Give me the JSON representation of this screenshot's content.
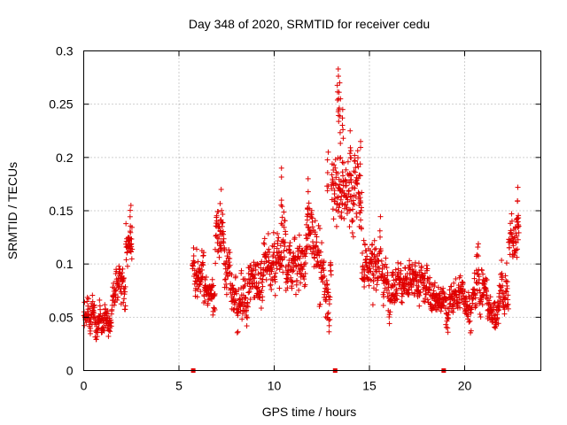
{
  "chart_data": {
    "type": "scatter",
    "title": "Day 348 of 2020, SRMTID for receiver cedu",
    "xlabel": "GPS time / hours",
    "ylabel": "SRMTID / TECUs",
    "xlim": [
      0,
      24
    ],
    "ylim": [
      0,
      0.3
    ],
    "x_ticks": [
      0,
      5,
      10,
      15,
      20
    ],
    "x_tick_labels": [
      "0",
      "5",
      "10",
      "15",
      "20"
    ],
    "y_ticks": [
      0,
      0.05,
      0.1,
      0.15,
      0.2,
      0.25,
      0.3
    ],
    "y_tick_labels": [
      "0",
      "0.05",
      "0.1",
      "0.15",
      "0.2",
      "0.25",
      "0.3"
    ],
    "grid": true,
    "marker": "plus",
    "color": "#e00000",
    "zero_markers_x": [
      5.75,
      13.2,
      18.9
    ],
    "series_profile": [
      {
        "t0": 0.0,
        "t1": 0.5,
        "center": 0.052,
        "spread": 0.02
      },
      {
        "t0": 0.5,
        "t1": 1.5,
        "center": 0.05,
        "spread": 0.018
      },
      {
        "t0": 1.5,
        "t1": 2.2,
        "center": 0.075,
        "spread": 0.025
      },
      {
        "t0": 2.2,
        "t1": 2.55,
        "center": 0.12,
        "spread": 0.025
      },
      {
        "t0": 5.7,
        "t1": 6.3,
        "center": 0.095,
        "spread": 0.025
      },
      {
        "t0": 6.3,
        "t1": 6.9,
        "center": 0.075,
        "spread": 0.02
      },
      {
        "t0": 6.9,
        "t1": 7.4,
        "center": 0.125,
        "spread": 0.03
      },
      {
        "t0": 7.4,
        "t1": 8.0,
        "center": 0.085,
        "spread": 0.025
      },
      {
        "t0": 8.0,
        "t1": 8.6,
        "center": 0.065,
        "spread": 0.025
      },
      {
        "t0": 8.6,
        "t1": 9.4,
        "center": 0.085,
        "spread": 0.03
      },
      {
        "t0": 9.4,
        "t1": 10.0,
        "center": 0.1,
        "spread": 0.03
      },
      {
        "t0": 10.0,
        "t1": 10.6,
        "center": 0.11,
        "spread": 0.04
      },
      {
        "t0": 10.6,
        "t1": 11.6,
        "center": 0.095,
        "spread": 0.03
      },
      {
        "t0": 11.6,
        "t1": 12.4,
        "center": 0.12,
        "spread": 0.04
      },
      {
        "t0": 12.4,
        "t1": 13.0,
        "center": 0.085,
        "spread": 0.035
      },
      {
        "t0": 13.0,
        "t1": 13.6,
        "center": 0.17,
        "spread": 0.05
      },
      {
        "t0": 13.6,
        "t1": 14.6,
        "center": 0.165,
        "spread": 0.04
      },
      {
        "t0": 14.6,
        "t1": 15.6,
        "center": 0.1,
        "spread": 0.035
      },
      {
        "t0": 15.6,
        "t1": 17.0,
        "center": 0.085,
        "spread": 0.025
      },
      {
        "t0": 17.0,
        "t1": 18.4,
        "center": 0.08,
        "spread": 0.025
      },
      {
        "t0": 18.4,
        "t1": 19.4,
        "center": 0.065,
        "spread": 0.02
      },
      {
        "t0": 19.4,
        "t1": 20.6,
        "center": 0.07,
        "spread": 0.02
      },
      {
        "t0": 20.6,
        "t1": 21.2,
        "center": 0.08,
        "spread": 0.03
      },
      {
        "t0": 21.2,
        "t1": 21.8,
        "center": 0.055,
        "spread": 0.02
      },
      {
        "t0": 21.8,
        "t1": 22.3,
        "center": 0.075,
        "spread": 0.03
      },
      {
        "t0": 22.3,
        "t1": 22.85,
        "center": 0.12,
        "spread": 0.03
      }
    ],
    "peaks": [
      {
        "x": 2.45,
        "y": 0.155
      },
      {
        "x": 7.2,
        "y": 0.17
      },
      {
        "x": 10.4,
        "y": 0.19
      },
      {
        "x": 11.75,
        "y": 0.18
      },
      {
        "x": 12.8,
        "y": 0.205
      },
      {
        "x": 13.35,
        "y": 0.283
      },
      {
        "x": 13.4,
        "y": 0.27
      },
      {
        "x": 13.45,
        "y": 0.255
      },
      {
        "x": 13.6,
        "y": 0.245
      },
      {
        "x": 14.0,
        "y": 0.225
      },
      {
        "x": 14.5,
        "y": 0.215
      },
      {
        "x": 22.8,
        "y": 0.172
      }
    ]
  }
}
